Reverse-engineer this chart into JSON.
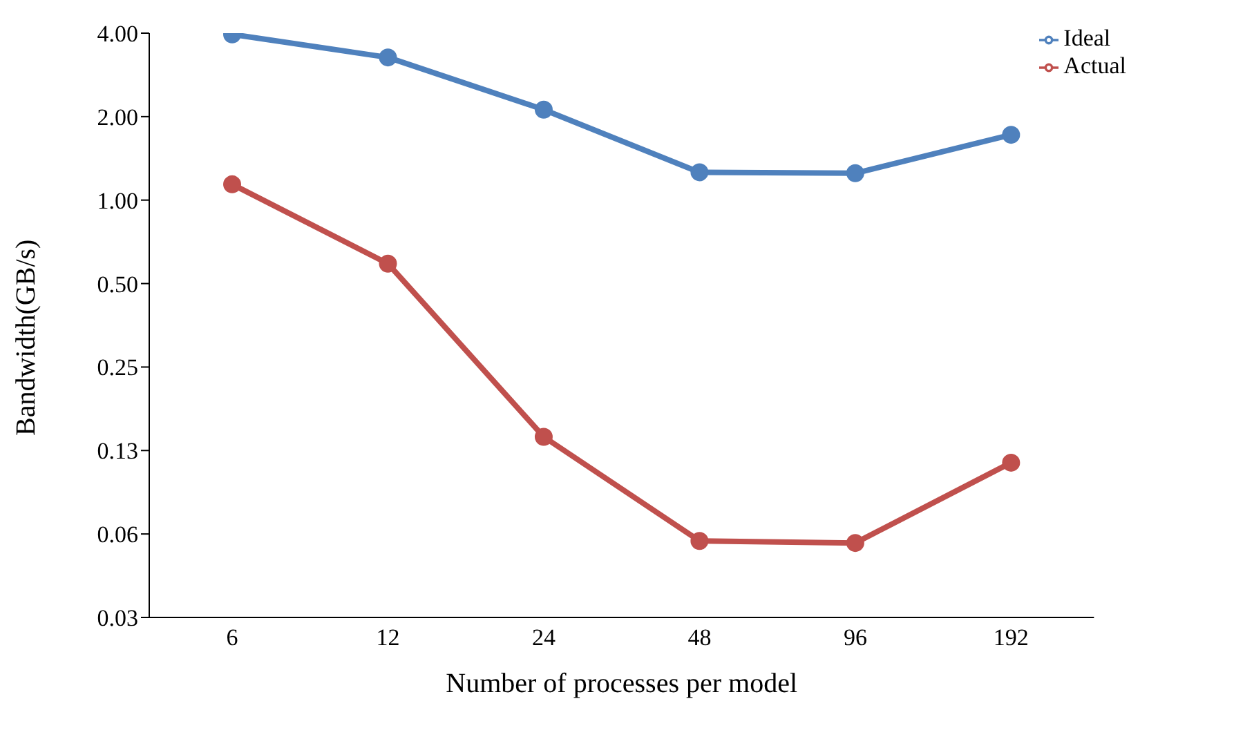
{
  "chart_data": {
    "type": "line",
    "xlabel": "Number of processes per model",
    "ylabel": "Bandwidth(GB/s)",
    "categories": [
      "6",
      "12",
      "24",
      "48",
      "96",
      "192"
    ],
    "series": [
      {
        "name": "Ideal",
        "color": "#4f81bd",
        "values": [
          3.96,
          3.27,
          2.12,
          1.26,
          1.25,
          1.72
        ]
      },
      {
        "name": "Actual",
        "color": "#c0504d",
        "values": [
          1.14,
          0.59,
          0.14,
          0.059,
          0.058,
          0.113
        ]
      }
    ],
    "log": "y",
    "ylim": [
      0.03125,
      4
    ],
    "yticks": [
      {
        "value": 0.03125,
        "label": "0.03"
      },
      {
        "value": 0.0625,
        "label": "0.06"
      },
      {
        "value": 0.125,
        "label": "0.13"
      },
      {
        "value": 0.25,
        "label": "0.25"
      },
      {
        "value": 0.5,
        "label": "0.50"
      },
      {
        "value": 1,
        "label": "1.00"
      },
      {
        "value": 2,
        "label": "2.00"
      },
      {
        "value": 4,
        "label": "4.00"
      }
    ],
    "grid": false,
    "legend": "top right",
    "marker": "circle",
    "line_style": "solid"
  }
}
